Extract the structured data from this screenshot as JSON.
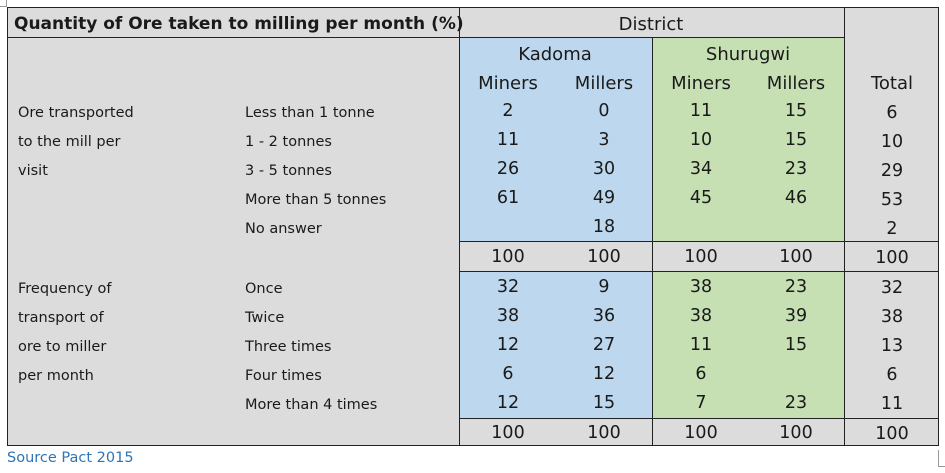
{
  "title": "Quantity of Ore taken to milling per month (%)",
  "district_label": "District",
  "districts": [
    "Kadoma",
    "Shurugwi"
  ],
  "subheaders": [
    "Miners",
    "Millers",
    "Miners",
    "Millers"
  ],
  "total_label": "Total",
  "colors": {
    "kadoma": "#bdd7ee",
    "shurugwi": "#c6e0b4",
    "background": "#dcdcdc",
    "source": "#2e75b6"
  },
  "section1": {
    "label_lines": [
      "Ore transported",
      "to the mill per",
      "visit"
    ],
    "rows": [
      {
        "label": "Less than 1 tonne",
        "values": [
          "2",
          "0",
          "11",
          "15",
          "6"
        ]
      },
      {
        "label": "1 - 2 tonnes",
        "values": [
          "11",
          "3",
          "10",
          "15",
          "10"
        ]
      },
      {
        "label": "3 - 5 tonnes",
        "values": [
          "26",
          "30",
          "34",
          "23",
          "29"
        ]
      },
      {
        "label": "More than 5 tonnes",
        "values": [
          "61",
          "49",
          "45",
          "46",
          "53"
        ]
      },
      {
        "label": "No answer",
        "values": [
          "",
          "18",
          "",
          "",
          "2"
        ]
      }
    ],
    "totals": [
      "100",
      "100",
      "100",
      "100",
      "100"
    ]
  },
  "section2": {
    "label_lines": [
      "Frequency of",
      "transport of",
      "ore to miller",
      "per month"
    ],
    "rows": [
      {
        "label": "Once",
        "values": [
          "32",
          "9",
          "38",
          "23",
          "32"
        ]
      },
      {
        "label": "Twice",
        "values": [
          "38",
          "36",
          "38",
          "39",
          "38"
        ]
      },
      {
        "label": "Three times",
        "values": [
          "12",
          "27",
          "11",
          "15",
          "13"
        ]
      },
      {
        "label": "Four times",
        "values": [
          "6",
          "12",
          "6",
          "",
          "6"
        ]
      },
      {
        "label": "More than 4 times",
        "values": [
          "12",
          "15",
          "7",
          "23",
          "11"
        ]
      }
    ],
    "totals": [
      "100",
      "100",
      "100",
      "100",
      "100"
    ]
  },
  "source": "Source Pact 2015"
}
